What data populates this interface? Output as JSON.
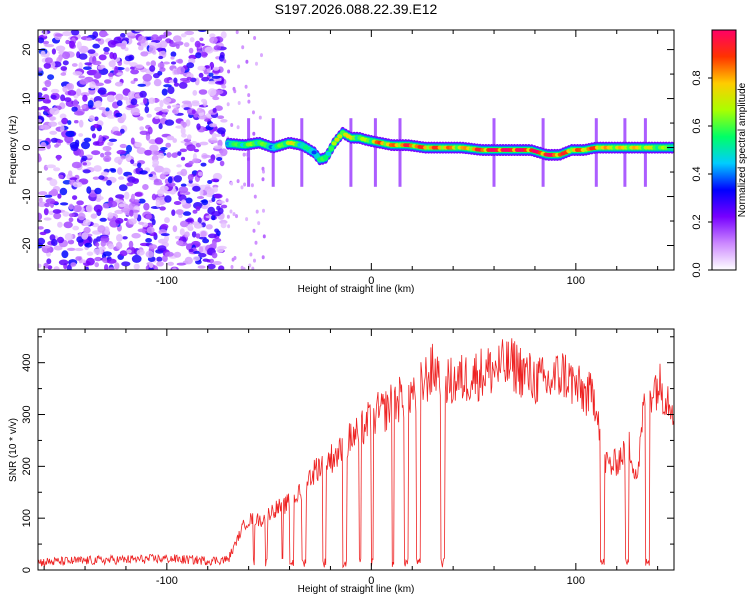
{
  "title": "S197.2026.088.22.39.E12",
  "chart_data": [
    {
      "type": "heatmap",
      "xlabel": "Height of straight line (km)",
      "ylabel": "Frequency (Hz)",
      "xlim": [
        -163,
        148
      ],
      "ylim": [
        -25,
        24
      ],
      "xticks": [
        -100,
        0,
        100
      ],
      "yticks": [
        20,
        10,
        0,
        -10,
        -20
      ],
      "colorbar": {
        "label": "Normalized spectral amplitude",
        "range": [
          0,
          1
        ],
        "ticks": [
          "0.0",
          "0.2",
          "0.4",
          "0.6",
          "0.8"
        ],
        "colors": [
          "#ffffff",
          "#cc88ff",
          "#7700ff",
          "#0000ff",
          "#00ccff",
          "#00ff66",
          "#aaff00",
          "#ffcc00",
          "#ff3300",
          "#ff0066"
        ]
      },
      "noise_region_x": [
        -163,
        -72
      ],
      "ridge": {
        "x": [
          -70,
          -62,
          -55,
          -48,
          -40,
          -34,
          -28,
          -25,
          -22,
          -18,
          -14,
          -10,
          -6,
          -2,
          4,
          10,
          18,
          26,
          34,
          44,
          54,
          62,
          70,
          78,
          86,
          92,
          98,
          104,
          110,
          116,
          124,
          132,
          140,
          148
        ],
        "freq": [
          0.8,
          0.5,
          1.0,
          0.0,
          1.0,
          0.5,
          -1.0,
          -2.5,
          -2.0,
          1.0,
          3.0,
          2.0,
          2.0,
          1.5,
          1.0,
          0.5,
          0.5,
          0.0,
          0.0,
          0.0,
          -0.5,
          -0.5,
          -0.5,
          -0.5,
          -1.5,
          -1.5,
          -0.5,
          -0.5,
          0.0,
          0.0,
          0.0,
          0.0,
          0.0,
          0.0
        ],
        "amp": [
          0.5,
          0.55,
          0.6,
          0.45,
          0.7,
          0.5,
          0.45,
          0.5,
          0.55,
          0.6,
          0.75,
          0.65,
          0.6,
          0.6,
          0.8,
          0.75,
          0.85,
          0.8,
          0.8,
          0.7,
          0.85,
          0.95,
          0.95,
          0.9,
          0.9,
          0.85,
          0.75,
          0.8,
          0.8,
          0.7,
          0.7,
          0.7,
          0.6,
          0.55
        ]
      },
      "spikes_x": [
        -60,
        -48,
        -34,
        -10,
        2,
        14,
        60,
        84,
        110,
        124,
        134
      ]
    },
    {
      "type": "line",
      "xlabel": "Height of straight line (km)",
      "ylabel": "SNR (10 * v/v)",
      "xlim": [
        -163,
        148
      ],
      "ylim": [
        0,
        465
      ],
      "xticks": [
        -100,
        0,
        100
      ],
      "yticks": [
        0,
        100,
        200,
        300,
        400
      ],
      "series": [
        {
          "name": "SNR",
          "color": "#ee2222",
          "x": [
            -163,
            -140,
            -120,
            -100,
            -80,
            -70,
            -62,
            -58,
            -54,
            -50,
            -46,
            -42,
            -38,
            -34,
            -30,
            -26,
            -22,
            -18,
            -14,
            -10,
            -6,
            -2,
            2,
            6,
            10,
            14,
            18,
            22,
            26,
            30,
            34,
            38,
            46,
            54,
            62,
            70,
            78,
            86,
            94,
            102,
            110,
            114,
            118,
            122,
            126,
            130,
            134,
            140,
            148
          ],
          "y": [
            15,
            18,
            20,
            22,
            18,
            20,
            90,
            100,
            95,
            110,
            120,
            125,
            140,
            150,
            180,
            200,
            210,
            220,
            230,
            255,
            265,
            285,
            300,
            305,
            320,
            330,
            345,
            340,
            365,
            385,
            385,
            360,
            370,
            380,
            390,
            395,
            370,
            360,
            380,
            345,
            330,
            210,
            200,
            220,
            240,
            180,
            340,
            360,
            320
          ],
          "dropouts": [
            [
              -58,
              -57
            ],
            [
              -52,
              -51
            ],
            [
              -44,
              -43
            ],
            [
              -40,
              -38
            ],
            [
              -34,
              -32
            ],
            [
              -24,
              -22
            ],
            [
              -14,
              -12
            ],
            [
              -6,
              -5
            ],
            [
              0,
              1
            ],
            [
              10,
              11
            ],
            [
              16,
              18
            ],
            [
              22,
              24
            ],
            [
              34,
              36
            ],
            [
              112,
              114
            ],
            [
              124,
              126
            ],
            [
              134,
              136
            ]
          ]
        }
      ]
    }
  ]
}
